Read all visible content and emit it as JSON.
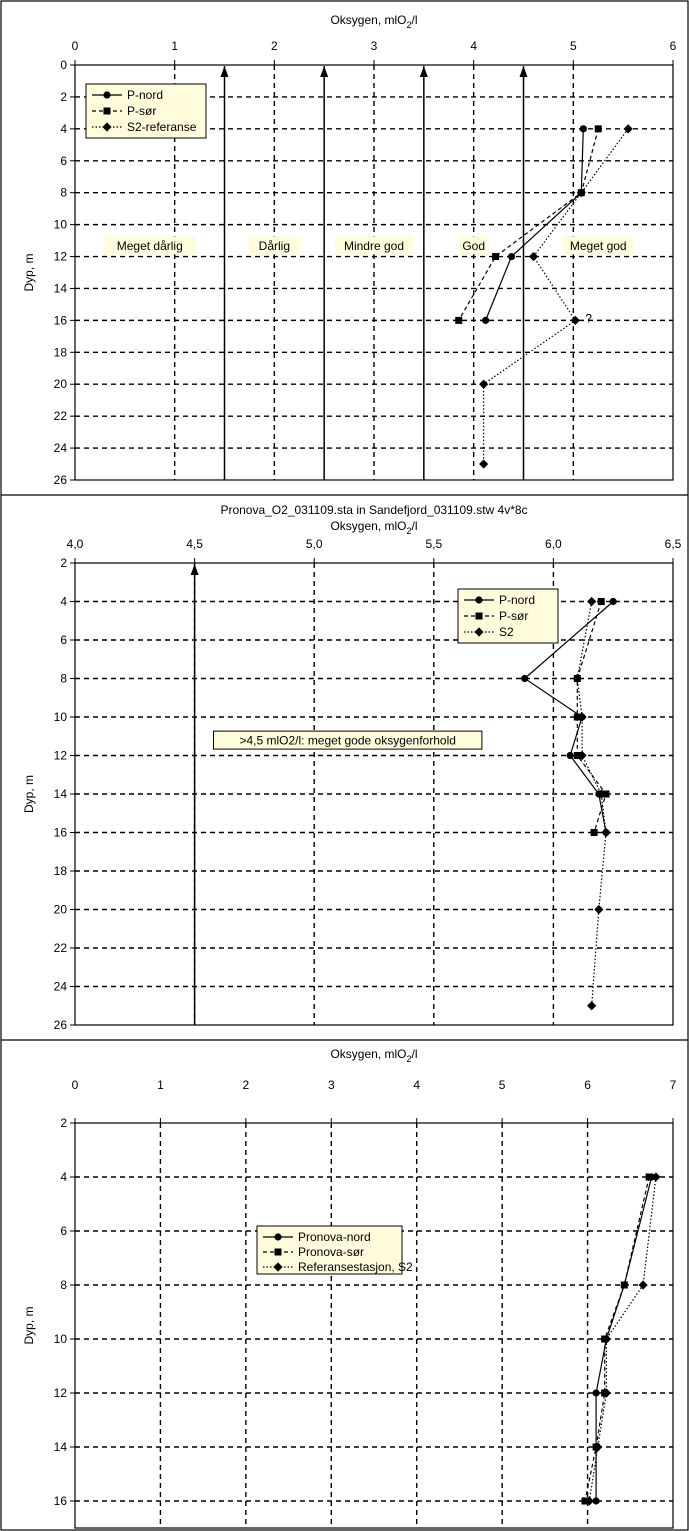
{
  "panel_title_extra": "Pronova_O2_031109.sta in Sandefjord_031109.stw 4v*8c",
  "xlabel": "Oksygen, mlO",
  "xlabel_sub": "2",
  "xlabel_suffix": "/l",
  "ylabel": "Dyp, m",
  "colors": {
    "line": "#000000",
    "legend_bg": "#fffcdc",
    "frame": "#000000"
  },
  "chart_data": [
    {
      "type": "line",
      "xlim": [
        0,
        6
      ],
      "ylim": [
        0,
        26
      ],
      "y_inverted": true,
      "x_axis_position": "top",
      "xticks": [
        "0",
        "1",
        "2",
        "3",
        "4",
        "5",
        "6"
      ],
      "xtick_values": [
        0,
        1,
        2,
        3,
        4,
        5,
        6
      ],
      "yticks": [
        "0",
        "2",
        "4",
        "6",
        "8",
        "10",
        "12",
        "14",
        "16",
        "18",
        "20",
        "22",
        "24",
        "26"
      ],
      "grid": true,
      "legend": "top-left",
      "arrows_at_x": [
        1.5,
        2.5,
        3.5,
        4.5
      ],
      "class_labels": [
        {
          "text": "Meget dårlig",
          "x": 0.75,
          "y": 11.3
        },
        {
          "text": "Dårlig",
          "x": 2.0,
          "y": 11.3
        },
        {
          "text": "Mindre god",
          "x": 3.0,
          "y": 11.3
        },
        {
          "text": "God",
          "x": 4.0,
          "y": 11.3
        },
        {
          "text": "Meget god",
          "x": 5.25,
          "y": 11.3
        }
      ],
      "annotations": [
        {
          "text": "?",
          "x": 5.1,
          "y": 16
        }
      ],
      "series": [
        {
          "name": "P-nord",
          "marker": "circle",
          "dash": "solid",
          "x": [
            5.1,
            5.08,
            4.38,
            4.12
          ],
          "y": [
            4,
            8,
            12,
            16
          ]
        },
        {
          "name": "P-sør",
          "marker": "square",
          "dash": "dashed",
          "x": [
            5.25,
            5.08,
            4.22,
            3.85
          ],
          "y": [
            4,
            8,
            12,
            16
          ]
        },
        {
          "name": "S2-referanse",
          "marker": "diamond",
          "dash": "dotted",
          "x": [
            5.55,
            5.08,
            4.6,
            5.02,
            4.1,
            4.1
          ],
          "y": [
            4,
            8,
            12,
            16,
            20,
            25
          ]
        }
      ]
    },
    {
      "type": "line",
      "xlim": [
        4.0,
        6.5
      ],
      "ylim": [
        2,
        26
      ],
      "y_inverted": true,
      "x_axis_position": "top",
      "xticks": [
        "4,0",
        "4,5",
        "5,0",
        "5,5",
        "6,0",
        "6,5"
      ],
      "xtick_values": [
        4.0,
        4.5,
        5.0,
        5.5,
        6.0,
        6.5
      ],
      "yticks": [
        "2",
        "4",
        "6",
        "8",
        "10",
        "12",
        "14",
        "16",
        "18",
        "20",
        "22",
        "24",
        "26"
      ],
      "grid": true,
      "legend": "top-right",
      "arrows_at_x": [
        4.5
      ],
      "class_labels": [
        {
          "text": ">4,5 mlO2/l: meget gode oksygenforhold",
          "x": 5.14,
          "y": 11.2
        }
      ],
      "annotations": [],
      "series": [
        {
          "name": "P-nord",
          "marker": "circle",
          "dash": "solid",
          "x": [
            6.25,
            5.88,
            6.12,
            6.07,
            6.19,
            6.22
          ],
          "y": [
            4,
            8,
            10,
            12,
            14,
            16
          ]
        },
        {
          "name": "P-sør",
          "marker": "square",
          "dash": "dashed",
          "x": [
            6.2,
            6.1,
            6.1,
            6.1,
            6.22,
            6.17
          ],
          "y": [
            4,
            8,
            10,
            12,
            14,
            16
          ]
        },
        {
          "name": "S2",
          "marker": "diamond",
          "dash": "dotted",
          "x": [
            6.16,
            6.1,
            6.12,
            6.12,
            6.2,
            6.22,
            6.19,
            6.16
          ],
          "y": [
            4,
            8,
            10,
            12,
            14,
            16,
            20,
            25
          ]
        }
      ]
    },
    {
      "type": "line",
      "xlim": [
        0,
        7
      ],
      "ylim": [
        2,
        17
      ],
      "y_inverted": true,
      "x_axis_position": "top",
      "xticks": [
        "0",
        "1",
        "2",
        "3",
        "4",
        "5",
        "6",
        "7"
      ],
      "xtick_values": [
        0,
        1,
        2,
        3,
        4,
        5,
        6,
        7
      ],
      "yticks": [
        "2",
        "4",
        "6",
        "8",
        "10",
        "12",
        "14",
        "16"
      ],
      "grid": true,
      "legend": "top-center",
      "arrows_at_x": [],
      "class_labels": [],
      "annotations": [],
      "series": [
        {
          "name": "Pronova-nord",
          "marker": "circle",
          "dash": "solid",
          "x": [
            6.75,
            6.43,
            6.22,
            6.1,
            6.1,
            6.1
          ],
          "y": [
            4,
            8,
            10,
            12,
            14,
            16
          ]
        },
        {
          "name": "Pronova-sør",
          "marker": "square",
          "dash": "dashed",
          "x": [
            6.72,
            6.43,
            6.2,
            6.2,
            6.1,
            5.97
          ],
          "y": [
            4,
            8,
            10,
            12,
            14,
            16
          ]
        },
        {
          "name": "Referansestasjon, S2",
          "marker": "diamond",
          "dash": "dotted",
          "x": [
            6.8,
            6.65,
            6.22,
            6.22,
            6.12,
            6.02
          ],
          "y": [
            4,
            8,
            10,
            12,
            14,
            16
          ]
        }
      ]
    }
  ]
}
